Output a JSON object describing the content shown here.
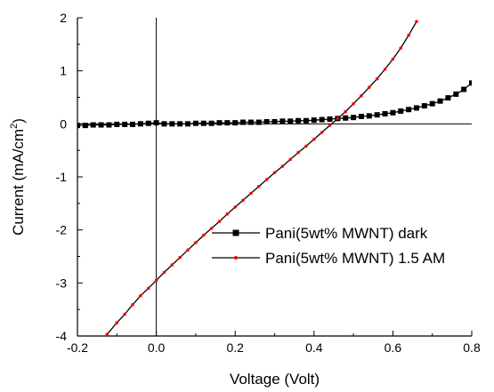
{
  "chart_data": {
    "type": "line",
    "xlabel": "Voltage (Volt)",
    "ylabel": "Current (mA/cm",
    "ylabel_sup": "2",
    "ylabel_end": ")",
    "xlim": [
      -0.2,
      0.8
    ],
    "ylim": [
      -4,
      2
    ],
    "x_ticks": [
      "-0.2",
      "0.0",
      "0.2",
      "0.4",
      "0.6",
      "0.8"
    ],
    "x_tick_values": [
      -0.2,
      0.0,
      0.2,
      0.4,
      0.6,
      0.8
    ],
    "y_ticks": [
      "-4",
      "-3",
      "-2",
      "-1",
      "0",
      "1",
      "2"
    ],
    "y_tick_values": [
      -4,
      -3,
      -2,
      -1,
      0,
      1,
      2
    ],
    "grid": false,
    "reference_lines": {
      "x": 0,
      "y": 0
    },
    "legend_position": "center-right",
    "series": [
      {
        "name": "Pani(5wt% MWNT) dark",
        "color": "#000000",
        "marker": "square",
        "x": [
          -0.2,
          -0.18,
          -0.16,
          -0.14,
          -0.12,
          -0.1,
          -0.08,
          -0.06,
          -0.04,
          -0.02,
          0.0,
          0.02,
          0.04,
          0.06,
          0.08,
          0.1,
          0.12,
          0.14,
          0.16,
          0.18,
          0.2,
          0.22,
          0.24,
          0.26,
          0.28,
          0.3,
          0.32,
          0.34,
          0.36,
          0.38,
          0.4,
          0.42,
          0.44,
          0.46,
          0.48,
          0.5,
          0.52,
          0.54,
          0.56,
          0.58,
          0.6,
          0.62,
          0.64,
          0.66,
          0.68,
          0.7,
          0.72,
          0.74,
          0.76,
          0.78,
          0.8
        ],
        "y": [
          -0.03,
          -0.03,
          -0.02,
          -0.02,
          -0.02,
          -0.01,
          -0.01,
          -0.01,
          0.0,
          0.01,
          0.02,
          0.0,
          0.0,
          0.0,
          0.0,
          0.01,
          0.01,
          0.01,
          0.02,
          0.02,
          0.02,
          0.03,
          0.03,
          0.03,
          0.04,
          0.04,
          0.05,
          0.05,
          0.06,
          0.06,
          0.07,
          0.08,
          0.09,
          0.1,
          0.11,
          0.12,
          0.14,
          0.15,
          0.17,
          0.19,
          0.21,
          0.24,
          0.27,
          0.3,
          0.34,
          0.38,
          0.43,
          0.49,
          0.56,
          0.65,
          0.77
        ]
      },
      {
        "name": "Pani(5wt% MWNT) 1.5 AM",
        "color": "#ff0000",
        "line_color": "#000000",
        "marker": "dot",
        "x": [
          -0.125,
          -0.1,
          -0.08,
          -0.06,
          -0.04,
          -0.02,
          0.0,
          0.02,
          0.04,
          0.06,
          0.08,
          0.1,
          0.12,
          0.14,
          0.16,
          0.18,
          0.2,
          0.22,
          0.24,
          0.26,
          0.28,
          0.3,
          0.32,
          0.34,
          0.36,
          0.38,
          0.4,
          0.42,
          0.44,
          0.46,
          0.48,
          0.5,
          0.52,
          0.54,
          0.56,
          0.58,
          0.6,
          0.62,
          0.64,
          0.66
        ],
        "y": [
          -3.97,
          -3.75,
          -3.59,
          -3.41,
          -3.24,
          -3.1,
          -2.95,
          -2.8,
          -2.66,
          -2.52,
          -2.38,
          -2.24,
          -2.1,
          -1.97,
          -1.84,
          -1.7,
          -1.57,
          -1.44,
          -1.31,
          -1.18,
          -1.05,
          -0.92,
          -0.8,
          -0.67,
          -0.54,
          -0.42,
          -0.29,
          -0.16,
          -0.03,
          0.1,
          0.23,
          0.38,
          0.53,
          0.69,
          0.85,
          1.03,
          1.22,
          1.43,
          1.67,
          1.93
        ]
      }
    ]
  }
}
